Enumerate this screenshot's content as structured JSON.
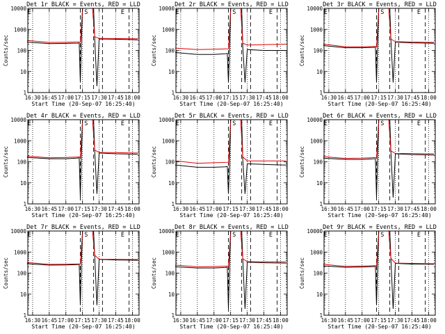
{
  "chart_data": [
    {
      "type": "line",
      "title": "Det 1r BLACK = Events, RED = LLD",
      "xlabel": "Start Time (20-Sep-07 16:25:40)",
      "ylabel": "Counts/sec",
      "yscale": "log",
      "ylim": [
        1,
        10000
      ],
      "x_ticks": [
        "16:30",
        "16:45",
        "17:00",
        "17:15",
        "17:30",
        "17:45",
        "18:00"
      ],
      "y_ticks": [
        "1",
        "10",
        "100",
        "1000",
        "10000"
      ],
      "markers": [
        {
          "label": "E",
          "x": "16:25"
        },
        {
          "label": "S",
          "x": "17:16"
        },
        {
          "label": "E",
          "x": "17:49"
        }
      ],
      "dashed_lines": [
        "17:13",
        "17:25",
        "17:33",
        "17:57"
      ],
      "series": [
        {
          "name": "Events",
          "color": "#000000",
          "x": [
            "16:25",
            "16:45",
            "17:00",
            "17:10",
            "17:12",
            "17:13",
            "17:14",
            "17:15",
            "17:17",
            "17:25",
            "17:26",
            "17:28",
            "17:30",
            "17:45",
            "18:05"
          ],
          "values": [
            250,
            210,
            215,
            220,
            225,
            3,
            250,
            10000,
            10000,
            10000,
            380,
            2,
            350,
            340,
            320
          ]
        },
        {
          "name": "LLD",
          "color": "#e00000",
          "x": [
            "16:25",
            "16:45",
            "17:00",
            "17:13",
            "17:15",
            "17:24",
            "17:26",
            "17:30",
            "18:05"
          ],
          "values": [
            300,
            240,
            245,
            255,
            10000,
            10000,
            450,
            370,
            360
          ]
        }
      ]
    },
    {
      "type": "line",
      "title": "Det 2r BLACK = Events, RED = LLD",
      "xlabel": "Start Time (20-Sep-07 16:25:40)",
      "ylabel": "Counts/sec",
      "yscale": "log",
      "ylim": [
        1,
        10000
      ],
      "x_ticks": [
        "16:30",
        "16:45",
        "17:00",
        "17:15",
        "17:30",
        "17:45",
        "18:00"
      ],
      "y_ticks": [
        "1",
        "10",
        "100",
        "1000",
        "10000"
      ],
      "markers": [
        {
          "label": "E",
          "x": "16:25"
        },
        {
          "label": "S",
          "x": "17:16"
        },
        {
          "label": "E",
          "x": "17:49"
        }
      ],
      "dashed_lines": [
        "17:13",
        "17:25",
        "17:33",
        "17:57"
      ],
      "series": [
        {
          "name": "Events",
          "color": "#000000",
          "x": [
            "16:25",
            "16:45",
            "17:00",
            "17:10",
            "17:12",
            "17:13",
            "17:14",
            "17:15",
            "17:17",
            "17:25",
            "17:26",
            "17:28",
            "17:30",
            "17:45",
            "18:05"
          ],
          "values": [
            80,
            65,
            65,
            70,
            72,
            3,
            80,
            10000,
            10000,
            10000,
            140,
            3,
            110,
            100,
            100
          ]
        },
        {
          "name": "LLD",
          "color": "#e00000",
          "x": [
            "16:25",
            "16:45",
            "17:00",
            "17:13",
            "17:15",
            "17:24",
            "17:26",
            "17:30",
            "18:05"
          ],
          "values": [
            130,
            110,
            115,
            120,
            10000,
            10000,
            220,
            180,
            200
          ]
        }
      ]
    },
    {
      "type": "line",
      "title": "Det 3r BLACK = Events, RED = LLD",
      "xlabel": "Start Time (20-Sep-07 16:25:40)",
      "ylabel": "Counts/sec",
      "yscale": "log",
      "ylim": [
        1,
        10000
      ],
      "x_ticks": [
        "16:30",
        "16:45",
        "17:00",
        "17:15",
        "17:30",
        "17:45",
        "18:00"
      ],
      "y_ticks": [
        "1",
        "10",
        "100",
        "1000",
        "10000"
      ],
      "markers": [
        {
          "label": "E",
          "x": "16:25"
        },
        {
          "label": "S",
          "x": "17:16"
        },
        {
          "label": "E",
          "x": "17:49"
        }
      ],
      "dashed_lines": [
        "17:13",
        "17:25",
        "17:33",
        "17:57"
      ],
      "series": [
        {
          "name": "Events",
          "color": "#000000",
          "x": [
            "16:25",
            "16:45",
            "17:00",
            "17:10",
            "17:12",
            "17:13",
            "17:14",
            "17:15",
            "17:17",
            "17:25",
            "17:26",
            "17:28",
            "17:30",
            "17:45",
            "18:05"
          ],
          "values": [
            170,
            135,
            135,
            140,
            145,
            3,
            160,
            10000,
            10000,
            10000,
            330,
            3,
            250,
            230,
            220
          ]
        },
        {
          "name": "LLD",
          "color": "#e00000",
          "x": [
            "16:25",
            "16:45",
            "17:00",
            "17:13",
            "17:15",
            "17:24",
            "17:26",
            "17:30",
            "18:05"
          ],
          "values": [
            200,
            150,
            150,
            155,
            10000,
            10000,
            350,
            260,
            240
          ]
        }
      ]
    },
    {
      "type": "line",
      "title": "Det 4r BLACK = Events, RED = LLD",
      "xlabel": "Start Time (20-Sep-07 16:25:40)",
      "ylabel": "Counts/sec",
      "yscale": "log",
      "ylim": [
        1,
        10000
      ],
      "x_ticks": [
        "16:30",
        "16:45",
        "17:00",
        "17:15",
        "17:30",
        "17:45",
        "18:00"
      ],
      "y_ticks": [
        "1",
        "10",
        "100",
        "1000",
        "10000"
      ],
      "markers": [
        {
          "label": "E",
          "x": "16:25"
        },
        {
          "label": "S",
          "x": "17:16"
        },
        {
          "label": "E",
          "x": "17:49"
        }
      ],
      "dashed_lines": [
        "17:13",
        "17:25",
        "17:33",
        "17:57"
      ],
      "series": [
        {
          "name": "Events",
          "color": "#000000",
          "x": [
            "16:25",
            "16:45",
            "17:00",
            "17:10",
            "17:12",
            "17:13",
            "17:14",
            "17:15",
            "17:17",
            "17:25",
            "17:26",
            "17:28",
            "17:30",
            "17:45",
            "18:05"
          ],
          "values": [
            160,
            140,
            140,
            150,
            155,
            2,
            170,
            10000,
            10000,
            10000,
            320,
            3,
            260,
            240,
            230
          ]
        },
        {
          "name": "LLD",
          "color": "#e00000",
          "x": [
            "16:25",
            "16:45",
            "17:00",
            "17:13",
            "17:15",
            "17:24",
            "17:26",
            "17:30",
            "18:05"
          ],
          "values": [
            185,
            155,
            160,
            170,
            10000,
            10000,
            360,
            280,
            260
          ]
        }
      ]
    },
    {
      "type": "line",
      "title": "Det 5r BLACK = Events, RED = LLD",
      "xlabel": "Start Time (20-Sep-07 16:25:40)",
      "ylabel": "Counts/sec",
      "yscale": "log",
      "ylim": [
        1,
        10000
      ],
      "x_ticks": [
        "16:30",
        "16:45",
        "17:00",
        "17:15",
        "17:30",
        "17:45",
        "18:00"
      ],
      "y_ticks": [
        "1",
        "10",
        "100",
        "1000",
        "10000"
      ],
      "markers": [
        {
          "label": "E",
          "x": "16:25"
        },
        {
          "label": "S",
          "x": "17:16"
        },
        {
          "label": "E",
          "x": "17:49"
        }
      ],
      "dashed_lines": [
        "17:13",
        "17:25",
        "17:33",
        "17:57"
      ],
      "series": [
        {
          "name": "Events",
          "color": "#000000",
          "x": [
            "16:25",
            "16:45",
            "17:00",
            "17:10",
            "17:12",
            "17:13",
            "17:14",
            "17:15",
            "17:17",
            "17:25",
            "17:26",
            "17:28",
            "17:30",
            "17:45",
            "18:05"
          ],
          "values": [
            70,
            55,
            55,
            58,
            60,
            3,
            65,
            10000,
            10000,
            10000,
            120,
            3,
            80,
            75,
            70
          ]
        },
        {
          "name": "LLD",
          "color": "#e00000",
          "x": [
            "16:25",
            "16:45",
            "17:00",
            "17:13",
            "17:15",
            "17:24",
            "17:26",
            "17:30",
            "18:05"
          ],
          "values": [
            110,
            85,
            90,
            95,
            10000,
            10000,
            170,
            110,
            110
          ]
        }
      ]
    },
    {
      "type": "line",
      "title": "Det 6r BLACK = Events, RED = LLD",
      "xlabel": "Start Time (20-Sep-07 16:25:40)",
      "ylabel": "Counts/sec",
      "yscale": "log",
      "ylim": [
        1,
        10000
      ],
      "x_ticks": [
        "16:30",
        "16:45",
        "17:00",
        "17:15",
        "17:30",
        "17:45",
        "18:00"
      ],
      "y_ticks": [
        "1",
        "10",
        "100",
        "1000",
        "10000"
      ],
      "markers": [
        {
          "label": "E",
          "x": "16:25"
        },
        {
          "label": "S",
          "x": "17:16"
        },
        {
          "label": "E",
          "x": "17:49"
        }
      ],
      "dashed_lines": [
        "17:13",
        "17:25",
        "17:33",
        "17:57"
      ],
      "series": [
        {
          "name": "Events",
          "color": "#000000",
          "x": [
            "16:25",
            "16:45",
            "17:00",
            "17:10",
            "17:12",
            "17:13",
            "17:14",
            "17:15",
            "17:17",
            "17:25",
            "17:26",
            "17:28",
            "17:30",
            "17:45",
            "18:05"
          ],
          "values": [
            150,
            130,
            130,
            138,
            142,
            2,
            160,
            10000,
            10000,
            10000,
            300,
            2,
            240,
            220,
            210
          ]
        },
        {
          "name": "LLD",
          "color": "#e00000",
          "x": [
            "16:25",
            "16:45",
            "17:00",
            "17:13",
            "17:15",
            "17:24",
            "17:26",
            "17:30",
            "18:05"
          ],
          "values": [
            175,
            145,
            150,
            160,
            10000,
            10000,
            330,
            250,
            240
          ]
        }
      ]
    },
    {
      "type": "line",
      "title": "Det 7r BLACK = Events, RED = LLD",
      "xlabel": "Start Time (20-Sep-07 16:25:40)",
      "ylabel": "Counts/sec",
      "yscale": "log",
      "ylim": [
        1,
        10000
      ],
      "x_ticks": [
        "16:30",
        "16:45",
        "17:00",
        "17:15",
        "17:30",
        "17:45",
        "18:00"
      ],
      "y_ticks": [
        "1",
        "10",
        "100",
        "1000",
        "10000"
      ],
      "markers": [
        {
          "label": "E",
          "x": "16:25"
        },
        {
          "label": "S",
          "x": "17:16"
        },
        {
          "label": "E",
          "x": "17:49"
        }
      ],
      "dashed_lines": [
        "17:13",
        "17:25",
        "17:33",
        "17:57"
      ],
      "series": [
        {
          "name": "Events",
          "color": "#000000",
          "x": [
            "16:25",
            "16:45",
            "17:00",
            "17:10",
            "17:12",
            "17:13",
            "17:14",
            "17:15",
            "17:17",
            "17:25",
            "17:26",
            "17:28",
            "17:30",
            "17:45",
            "18:05"
          ],
          "values": [
            280,
            240,
            245,
            255,
            260,
            3,
            280,
            10000,
            10000,
            10000,
            650,
            3,
            450,
            420,
            410
          ]
        },
        {
          "name": "LLD",
          "color": "#e00000",
          "x": [
            "16:25",
            "16:45",
            "17:00",
            "17:13",
            "17:15",
            "17:24",
            "17:26",
            "17:30",
            "18:05"
          ],
          "values": [
            320,
            260,
            265,
            275,
            10000,
            10000,
            700,
            460,
            440
          ]
        }
      ]
    },
    {
      "type": "line",
      "title": "Det 8r BLACK = Events, RED = LLD",
      "xlabel": "Start Time (20-Sep-07 16:25:40)",
      "ylabel": "Counts/sec",
      "yscale": "log",
      "ylim": [
        1,
        10000
      ],
      "x_ticks": [
        "16:30",
        "16:45",
        "17:00",
        "17:15",
        "17:30",
        "17:45",
        "18:00"
      ],
      "y_ticks": [
        "1",
        "10",
        "100",
        "1000",
        "10000"
      ],
      "markers": [
        {
          "label": "E",
          "x": "16:25"
        },
        {
          "label": "S",
          "x": "17:16"
        },
        {
          "label": "E",
          "x": "17:49"
        }
      ],
      "dashed_lines": [
        "17:13",
        "17:25",
        "17:33",
        "17:57"
      ],
      "series": [
        {
          "name": "Events",
          "color": "#000000",
          "x": [
            "16:25",
            "16:45",
            "17:00",
            "17:10",
            "17:12",
            "17:13",
            "17:14",
            "17:15",
            "17:17",
            "17:25",
            "17:26",
            "17:28",
            "17:30",
            "17:45",
            "18:05"
          ],
          "values": [
            200,
            175,
            175,
            185,
            190,
            2,
            200,
            10000,
            10000,
            10000,
            450,
            2,
            330,
            310,
            300
          ]
        },
        {
          "name": "LLD",
          "color": "#e00000",
          "x": [
            "16:25",
            "16:45",
            "17:00",
            "17:13",
            "17:15",
            "17:24",
            "17:26",
            "17:30",
            "18:05"
          ],
          "values": [
            240,
            200,
            205,
            215,
            10000,
            10000,
            480,
            350,
            340
          ]
        }
      ]
    },
    {
      "type": "line",
      "title": "Det 9r BLACK = Events, RED = LLD",
      "xlabel": "Start Time (20-Sep-07 16:25:40)",
      "ylabel": "Counts/sec",
      "yscale": "log",
      "ylim": [
        1,
        10000
      ],
      "x_ticks": [
        "16:30",
        "16:45",
        "17:00",
        "17:15",
        "17:30",
        "17:45",
        "18:00"
      ],
      "y_ticks": [
        "1",
        "10",
        "100",
        "1000",
        "10000"
      ],
      "markers": [
        {
          "label": "E",
          "x": "16:25"
        },
        {
          "label": "S",
          "x": "17:16"
        },
        {
          "label": "E",
          "x": "17:49"
        }
      ],
      "dashed_lines": [
        "17:13",
        "17:25",
        "17:33",
        "17:57"
      ],
      "series": [
        {
          "name": "Events",
          "color": "#000000",
          "x": [
            "16:25",
            "16:45",
            "17:00",
            "17:10",
            "17:12",
            "17:13",
            "17:14",
            "17:15",
            "17:17",
            "17:25",
            "17:26",
            "17:28",
            "17:30",
            "17:45",
            "18:05"
          ],
          "values": [
            220,
            190,
            195,
            205,
            210,
            3,
            230,
            10000,
            10000,
            10000,
            450,
            2,
            290,
            270,
            265
          ]
        },
        {
          "name": "LLD",
          "color": "#e00000",
          "x": [
            "16:25",
            "16:45",
            "17:00",
            "17:13",
            "17:15",
            "17:24",
            "17:26",
            "17:30",
            "18:05"
          ],
          "values": [
            260,
            210,
            215,
            225,
            10000,
            10000,
            500,
            300,
            280
          ]
        }
      ]
    }
  ]
}
